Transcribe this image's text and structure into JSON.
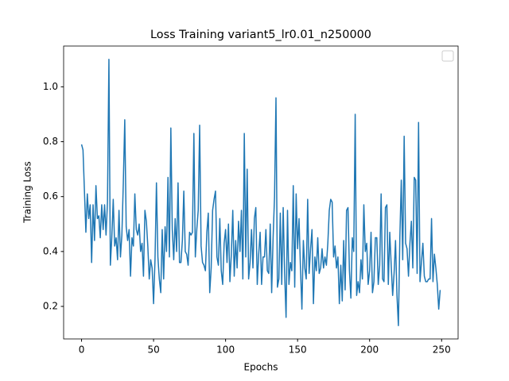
{
  "chart_data": {
    "type": "line",
    "title": "Loss Training variant5_lr0.01_n250000",
    "x_label": "Epochs",
    "y_label": "Training Loss",
    "x": [
      0,
      1,
      2,
      3,
      4,
      5,
      6,
      7,
      8,
      9,
      10,
      11,
      12,
      13,
      14,
      15,
      16,
      17,
      18,
      19,
      20,
      21,
      22,
      23,
      24,
      25,
      26,
      27,
      28,
      29,
      30,
      31,
      32,
      33,
      34,
      35,
      36,
      37,
      38,
      39,
      40,
      41,
      42,
      43,
      44,
      45,
      46,
      47,
      48,
      49,
      50,
      51,
      52,
      53,
      54,
      55,
      56,
      57,
      58,
      59,
      60,
      61,
      62,
      63,
      64,
      65,
      66,
      67,
      68,
      69,
      70,
      71,
      72,
      73,
      74,
      75,
      76,
      77,
      78,
      79,
      80,
      81,
      82,
      83,
      84,
      85,
      86,
      87,
      88,
      89,
      90,
      91,
      92,
      93,
      94,
      95,
      96,
      97,
      98,
      99,
      100,
      101,
      102,
      103,
      104,
      105,
      106,
      107,
      108,
      109,
      110,
      111,
      112,
      113,
      114,
      115,
      116,
      117,
      118,
      119,
      120,
      121,
      122,
      123,
      124,
      125,
      126,
      127,
      128,
      129,
      130,
      131,
      132,
      133,
      134,
      135,
      136,
      137,
      138,
      139,
      140,
      141,
      142,
      143,
      144,
      145,
      146,
      147,
      148,
      149,
      150,
      151,
      152,
      153,
      154,
      155,
      156,
      157,
      158,
      159,
      160,
      161,
      162,
      163,
      164,
      165,
      166,
      167,
      168,
      169,
      170,
      171,
      172,
      173,
      174,
      175,
      176,
      177,
      178,
      179,
      180,
      181,
      182,
      183,
      184,
      185,
      186,
      187,
      188,
      189,
      190,
      191,
      192,
      193,
      194,
      195,
      196,
      197,
      198,
      199,
      200,
      201,
      202,
      203,
      204,
      205,
      206,
      207,
      208,
      209,
      210,
      211,
      212,
      213,
      214,
      215,
      216,
      217,
      218,
      219,
      220,
      221,
      222,
      223,
      224,
      225,
      226,
      227,
      228,
      229,
      230,
      231,
      232,
      233,
      234,
      235,
      236,
      237,
      238,
      239,
      240,
      241,
      242,
      243,
      244,
      245,
      246,
      247,
      248,
      249
    ],
    "series": [
      {
        "color": "#1f77b4",
        "values": [
          0.79,
          0.77,
          0.62,
          0.47,
          0.61,
          0.52,
          0.57,
          0.36,
          0.57,
          0.44,
          0.64,
          0.52,
          0.53,
          0.45,
          0.57,
          0.48,
          0.57,
          0.46,
          0.58,
          1.1,
          0.35,
          0.45,
          0.59,
          0.42,
          0.45,
          0.37,
          0.55,
          0.38,
          0.46,
          0.65,
          0.88,
          0.49,
          0.44,
          0.48,
          0.31,
          0.45,
          0.42,
          0.61,
          0.48,
          0.46,
          0.5,
          0.4,
          0.43,
          0.31,
          0.55,
          0.51,
          0.42,
          0.3,
          0.37,
          0.34,
          0.21,
          0.37,
          0.65,
          0.38,
          0.3,
          0.25,
          0.48,
          0.3,
          0.49,
          0.4,
          0.67,
          0.38,
          0.85,
          0.48,
          0.37,
          0.52,
          0.4,
          0.65,
          0.36,
          0.36,
          0.44,
          0.62,
          0.4,
          0.39,
          0.35,
          0.47,
          0.46,
          0.47,
          0.83,
          0.38,
          0.48,
          0.55,
          0.86,
          0.42,
          0.36,
          0.35,
          0.33,
          0.47,
          0.54,
          0.25,
          0.34,
          0.55,
          0.59,
          0.62,
          0.38,
          0.35,
          0.52,
          0.33,
          0.28,
          0.43,
          0.48,
          0.36,
          0.5,
          0.29,
          0.39,
          0.55,
          0.31,
          0.44,
          0.34,
          0.51,
          0.4,
          0.55,
          0.3,
          0.83,
          0.38,
          0.7,
          0.3,
          0.36,
          0.48,
          0.34,
          0.52,
          0.56,
          0.28,
          0.39,
          0.47,
          0.28,
          0.38,
          0.38,
          0.48,
          0.33,
          0.32,
          0.5,
          0.25,
          0.45,
          0.6,
          0.96,
          0.27,
          0.3,
          0.54,
          0.28,
          0.56,
          0.32,
          0.16,
          0.55,
          0.28,
          0.36,
          0.33,
          0.64,
          0.27,
          0.61,
          0.41,
          0.52,
          0.34,
          0.19,
          0.44,
          0.34,
          0.3,
          0.59,
          0.32,
          0.41,
          0.48,
          0.21,
          0.38,
          0.33,
          0.45,
          0.32,
          0.34,
          0.41,
          0.34,
          0.38,
          0.35,
          0.43,
          0.55,
          0.59,
          0.58,
          0.38,
          0.42,
          0.34,
          0.38,
          0.21,
          0.35,
          0.22,
          0.44,
          0.26,
          0.55,
          0.56,
          0.33,
          0.23,
          0.45,
          0.4,
          0.9,
          0.24,
          0.29,
          0.25,
          0.37,
          0.3,
          0.57,
          0.4,
          0.43,
          0.28,
          0.33,
          0.47,
          0.25,
          0.29,
          0.45,
          0.45,
          0.28,
          0.35,
          0.61,
          0.3,
          0.29,
          0.56,
          0.57,
          0.28,
          0.47,
          0.35,
          0.24,
          0.32,
          0.44,
          0.24,
          0.13,
          0.45,
          0.66,
          0.37,
          0.82,
          0.43,
          0.41,
          0.31,
          0.43,
          0.51,
          0.34,
          0.67,
          0.66,
          0.32,
          0.87,
          0.29,
          0.36,
          0.43,
          0.31,
          0.29,
          0.29,
          0.3,
          0.3,
          0.52,
          0.29,
          0.39,
          0.34,
          0.28,
          0.19,
          0.26
        ]
      }
    ],
    "xlim": [
      -12.45,
      261.45
    ],
    "ylim": [
      0.0815,
      1.1485
    ],
    "xticks": [
      0,
      50,
      100,
      150,
      200,
      250
    ],
    "yticks": [
      0.2,
      0.4,
      0.6,
      0.8,
      {
        "value": 1,
        "label": "1.0"
      }
    ]
  }
}
